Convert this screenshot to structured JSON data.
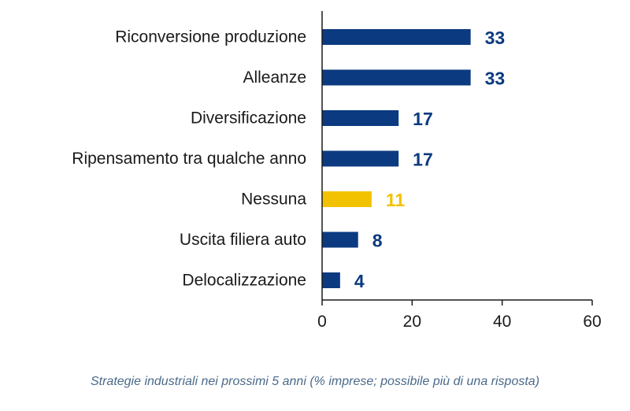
{
  "chart_data": {
    "type": "bar",
    "orientation": "horizontal",
    "categories": [
      "Riconversione produzione",
      "Alleanze",
      "Diversificazione",
      "Ripensamento tra qualche anno",
      "Nessuna",
      "Uscita filiera auto",
      "Delocalizzazione"
    ],
    "values": [
      33,
      33,
      17,
      17,
      11,
      8,
      4
    ],
    "value_labels": [
      "33",
      "33",
      "17",
      "17",
      "11",
      "8",
      "4"
    ],
    "highlight_category": "Nessuna",
    "xlim": [
      0,
      60
    ],
    "xticks": [
      0,
      20,
      40,
      60
    ],
    "xtick_labels": [
      "0",
      "20",
      "40",
      "60"
    ],
    "grid": false,
    "colors": {
      "default": "#0b3a80",
      "highlight": "#f2c200"
    }
  },
  "caption": "Strategie industriali nei prossimi 5 anni (% imprese; possibile più di una risposta)"
}
